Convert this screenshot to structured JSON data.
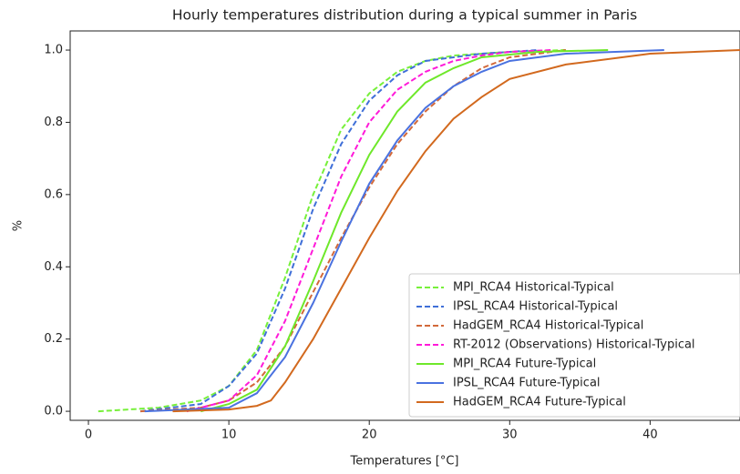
{
  "chart_data": {
    "type": "line",
    "title": "Hourly temperatures distribution during a typical summer in Paris",
    "x_label": "Temperatures [°C]",
    "y_label": "%",
    "xlim": [
      -1.3,
      46.4
    ],
    "ylim": [
      -0.025,
      1.053
    ],
    "xticks": [
      0,
      10,
      20,
      30,
      40
    ],
    "yticks": [
      {
        "value": 0,
        "label": "0.0"
      },
      0.2,
      0.4,
      0.6,
      0.8,
      {
        "value": 1,
        "label": "1.0"
      }
    ],
    "legend": "lower right",
    "series": [
      {
        "name": "MPI_RCA4 Historical-Typical",
        "color": "#77f03a",
        "linestyle": "dashed",
        "x": [
          0.7,
          5,
          8,
          10,
          12,
          14,
          16,
          18,
          20,
          22,
          24,
          26,
          30,
          34
        ],
        "values": [
          0,
          0.01,
          0.03,
          0.07,
          0.17,
          0.37,
          0.6,
          0.78,
          0.88,
          0.94,
          0.97,
          0.985,
          0.995,
          1.0
        ]
      },
      {
        "name": "IPSL_RCA4 Historical-Typical",
        "color": "#3f6fd8",
        "linestyle": "dashed",
        "x": [
          3.7,
          8,
          10,
          12,
          14,
          16,
          18,
          20,
          22,
          24,
          28,
          32
        ],
        "values": [
          0,
          0.02,
          0.07,
          0.16,
          0.34,
          0.56,
          0.74,
          0.86,
          0.93,
          0.97,
          0.99,
          1.0
        ]
      },
      {
        "name": "HadGEM_RCA4 Historical-Typical",
        "color": "#d2693a",
        "linestyle": "dashed",
        "x": [
          3.7,
          8,
          10,
          12,
          14,
          16,
          18,
          20,
          22,
          24,
          26,
          28,
          30,
          34
        ],
        "values": [
          0,
          0.01,
          0.03,
          0.08,
          0.18,
          0.33,
          0.48,
          0.62,
          0.74,
          0.83,
          0.9,
          0.95,
          0.98,
          1.0
        ]
      },
      {
        "name": "RT-2012 (Observations) Historical-Typical",
        "color": "#ff1ad9",
        "linestyle": "dashed",
        "x": [
          7,
          10,
          12,
          14,
          16,
          18,
          20,
          22,
          24,
          26,
          28,
          30,
          33
        ],
        "values": [
          0,
          0.03,
          0.1,
          0.25,
          0.45,
          0.65,
          0.8,
          0.89,
          0.94,
          0.97,
          0.985,
          0.995,
          1.0
        ]
      },
      {
        "name": "MPI_RCA4 Future-Typical",
        "color": "#6ee82a",
        "linestyle": "solid",
        "x": [
          8,
          10,
          12,
          14,
          16,
          18,
          20,
          22,
          24,
          26,
          28,
          32,
          37
        ],
        "values": [
          0,
          0.02,
          0.06,
          0.18,
          0.36,
          0.55,
          0.71,
          0.83,
          0.91,
          0.95,
          0.98,
          0.995,
          1.0
        ]
      },
      {
        "name": "IPSL_RCA4 Future-Typical",
        "color": "#4a72e0",
        "linestyle": "solid",
        "x": [
          4,
          10,
          12,
          14,
          16,
          18,
          20,
          22,
          24,
          26,
          28,
          30,
          34,
          41
        ],
        "values": [
          0,
          0.01,
          0.05,
          0.15,
          0.3,
          0.47,
          0.63,
          0.75,
          0.84,
          0.9,
          0.94,
          0.97,
          0.99,
          1.0
        ]
      },
      {
        "name": "HadGEM_RCA4 Future-Typical",
        "color": "#d2691e",
        "linestyle": "solid",
        "x": [
          6,
          10,
          12,
          13,
          14,
          16,
          18,
          20,
          22,
          24,
          26,
          28,
          30,
          34,
          40,
          46.5
        ],
        "values": [
          0,
          0.005,
          0.015,
          0.03,
          0.08,
          0.2,
          0.34,
          0.48,
          0.61,
          0.72,
          0.81,
          0.87,
          0.92,
          0.96,
          0.99,
          1.0
        ]
      }
    ]
  }
}
